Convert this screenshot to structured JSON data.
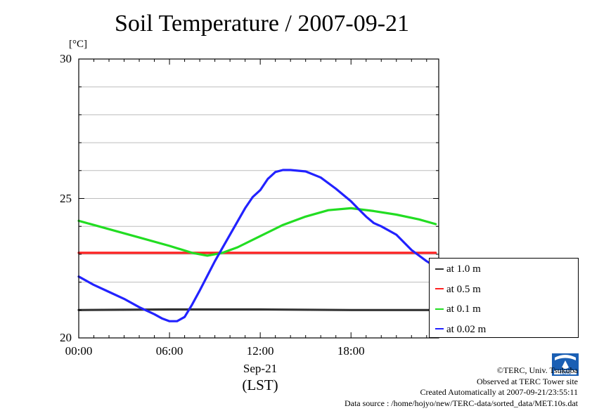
{
  "chart_data": {
    "type": "line",
    "title": "Soil Temperature / 2007-09-21",
    "ylabel": "[°C]",
    "xlabel_date": "Sep-21",
    "xlabel_tz": "(LST)",
    "ylim": [
      20,
      30
    ],
    "xlim": [
      0,
      23.8
    ],
    "y_ticks": [
      "20",
      "25",
      "30"
    ],
    "x_ticks": [
      "00:00",
      "06:00",
      "12:00",
      "18:00"
    ],
    "x_tick_values": [
      0,
      6,
      12,
      18
    ],
    "grid": true,
    "legend_position": "right",
    "series": [
      {
        "name": "at 1.0 m",
        "color": "#333333",
        "x": [
          0,
          6,
          12,
          18,
          23.6
        ],
        "y": [
          21.0,
          21.02,
          21.02,
          21.0,
          21.0
        ]
      },
      {
        "name": "at 0.5 m",
        "color": "#ff2222",
        "x": [
          0,
          6,
          12,
          18,
          23.6
        ],
        "y": [
          23.05,
          23.05,
          23.05,
          23.05,
          23.05
        ]
      },
      {
        "name": "at 0.1 m",
        "color": "#22dd22",
        "x": [
          0,
          2,
          4,
          6,
          7.5,
          8.5,
          9.5,
          10.5,
          12,
          13.5,
          15,
          16.5,
          18,
          19.5,
          21,
          22.5,
          23.6
        ],
        "y": [
          24.2,
          23.9,
          23.6,
          23.3,
          23.05,
          22.95,
          23.05,
          23.25,
          23.65,
          24.05,
          24.35,
          24.58,
          24.65,
          24.55,
          24.42,
          24.25,
          24.08
        ]
      },
      {
        "name": "at 0.02 m",
        "color": "#2222ff",
        "x": [
          0,
          1,
          2,
          3,
          4,
          5,
          5.5,
          6,
          6.5,
          7,
          7.5,
          8,
          9,
          10,
          11,
          11.5,
          12,
          12.5,
          13,
          13.5,
          14,
          15,
          16,
          17,
          18,
          18.5,
          19,
          19.5,
          20,
          21,
          22,
          23,
          23.6
        ],
        "y": [
          22.2,
          21.9,
          21.65,
          21.4,
          21.1,
          20.85,
          20.7,
          20.6,
          20.6,
          20.75,
          21.2,
          21.7,
          22.75,
          23.7,
          24.65,
          25.05,
          25.3,
          25.7,
          25.95,
          26.02,
          26.02,
          25.97,
          25.75,
          25.35,
          24.9,
          24.62,
          24.35,
          24.12,
          24.0,
          23.7,
          23.15,
          22.75,
          22.55
        ]
      }
    ]
  },
  "credits": {
    "copyright": "©TERC, Univ. Tsukuba",
    "observed": "Observed at TERC Tower site",
    "created": "Created Automatically at 2007-09-21/23:55:11",
    "source": "Data source : /home/hojyo/new/TERC-data/sorted_data/MET.10s.dat"
  },
  "logo": {
    "text": "TERC",
    "color": "#1a5fb4"
  }
}
